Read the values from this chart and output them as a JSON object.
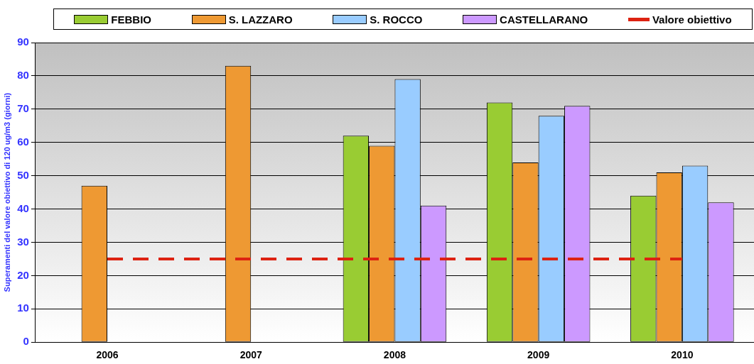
{
  "chart_data": {
    "type": "bar",
    "ylabel": "Superamenti del valore obiettivo di 120 ug/m3 (giorni)",
    "categories": [
      "2006",
      "2007",
      "2008",
      "2009",
      "2010"
    ],
    "series": [
      {
        "name": "FEBBIO",
        "color": "#99cc33",
        "values": [
          null,
          null,
          62,
          72,
          44
        ]
      },
      {
        "name": "S. LAZZARO",
        "color": "#ee9933",
        "values": [
          47,
          83,
          59,
          54,
          51
        ]
      },
      {
        "name": "S. ROCCO",
        "color": "#99ccff",
        "values": [
          null,
          null,
          79,
          68,
          53
        ]
      },
      {
        "name": "CASTELLARANO",
        "color": "#cc99ff",
        "values": [
          null,
          null,
          41,
          71,
          42
        ]
      },
      {
        "name": "Valore obiettivo",
        "type": "line",
        "color": "#dd2211",
        "line_style": "dashed",
        "marker": "none",
        "values": [
          25,
          25,
          25,
          25,
          25
        ]
      }
    ],
    "ylim": [
      0,
      90
    ],
    "yticks": [
      0,
      10,
      20,
      30,
      40,
      50,
      60,
      70,
      80,
      90
    ],
    "grid": "y",
    "legend": "top"
  }
}
